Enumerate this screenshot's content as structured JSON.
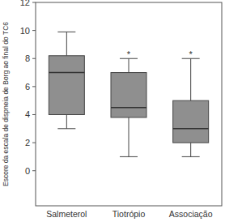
{
  "chart_data": {
    "type": "box",
    "y_label": "Escore da escala de dispneia de Borg ao final do TC6",
    "categories": [
      "Salmeterol",
      "Tiotrópio",
      "Associação"
    ],
    "stats": [
      {
        "min": 3,
        "q1": 4,
        "median": 7,
        "q3": 8.2,
        "max": 9.9
      },
      {
        "min": 1,
        "q1": 3.8,
        "median": 4.5,
        "q3": 7,
        "max": 8
      },
      {
        "min": 1,
        "q1": 2,
        "median": 3,
        "q3": 5,
        "max": 8
      }
    ],
    "significance": [
      null,
      "*",
      "*"
    ],
    "color": "#8f8f8f",
    "ylim": [
      -2.5,
      12
    ],
    "yticks": [
      0,
      2,
      4,
      6,
      8,
      10,
      12
    ],
    "grid": false
  }
}
